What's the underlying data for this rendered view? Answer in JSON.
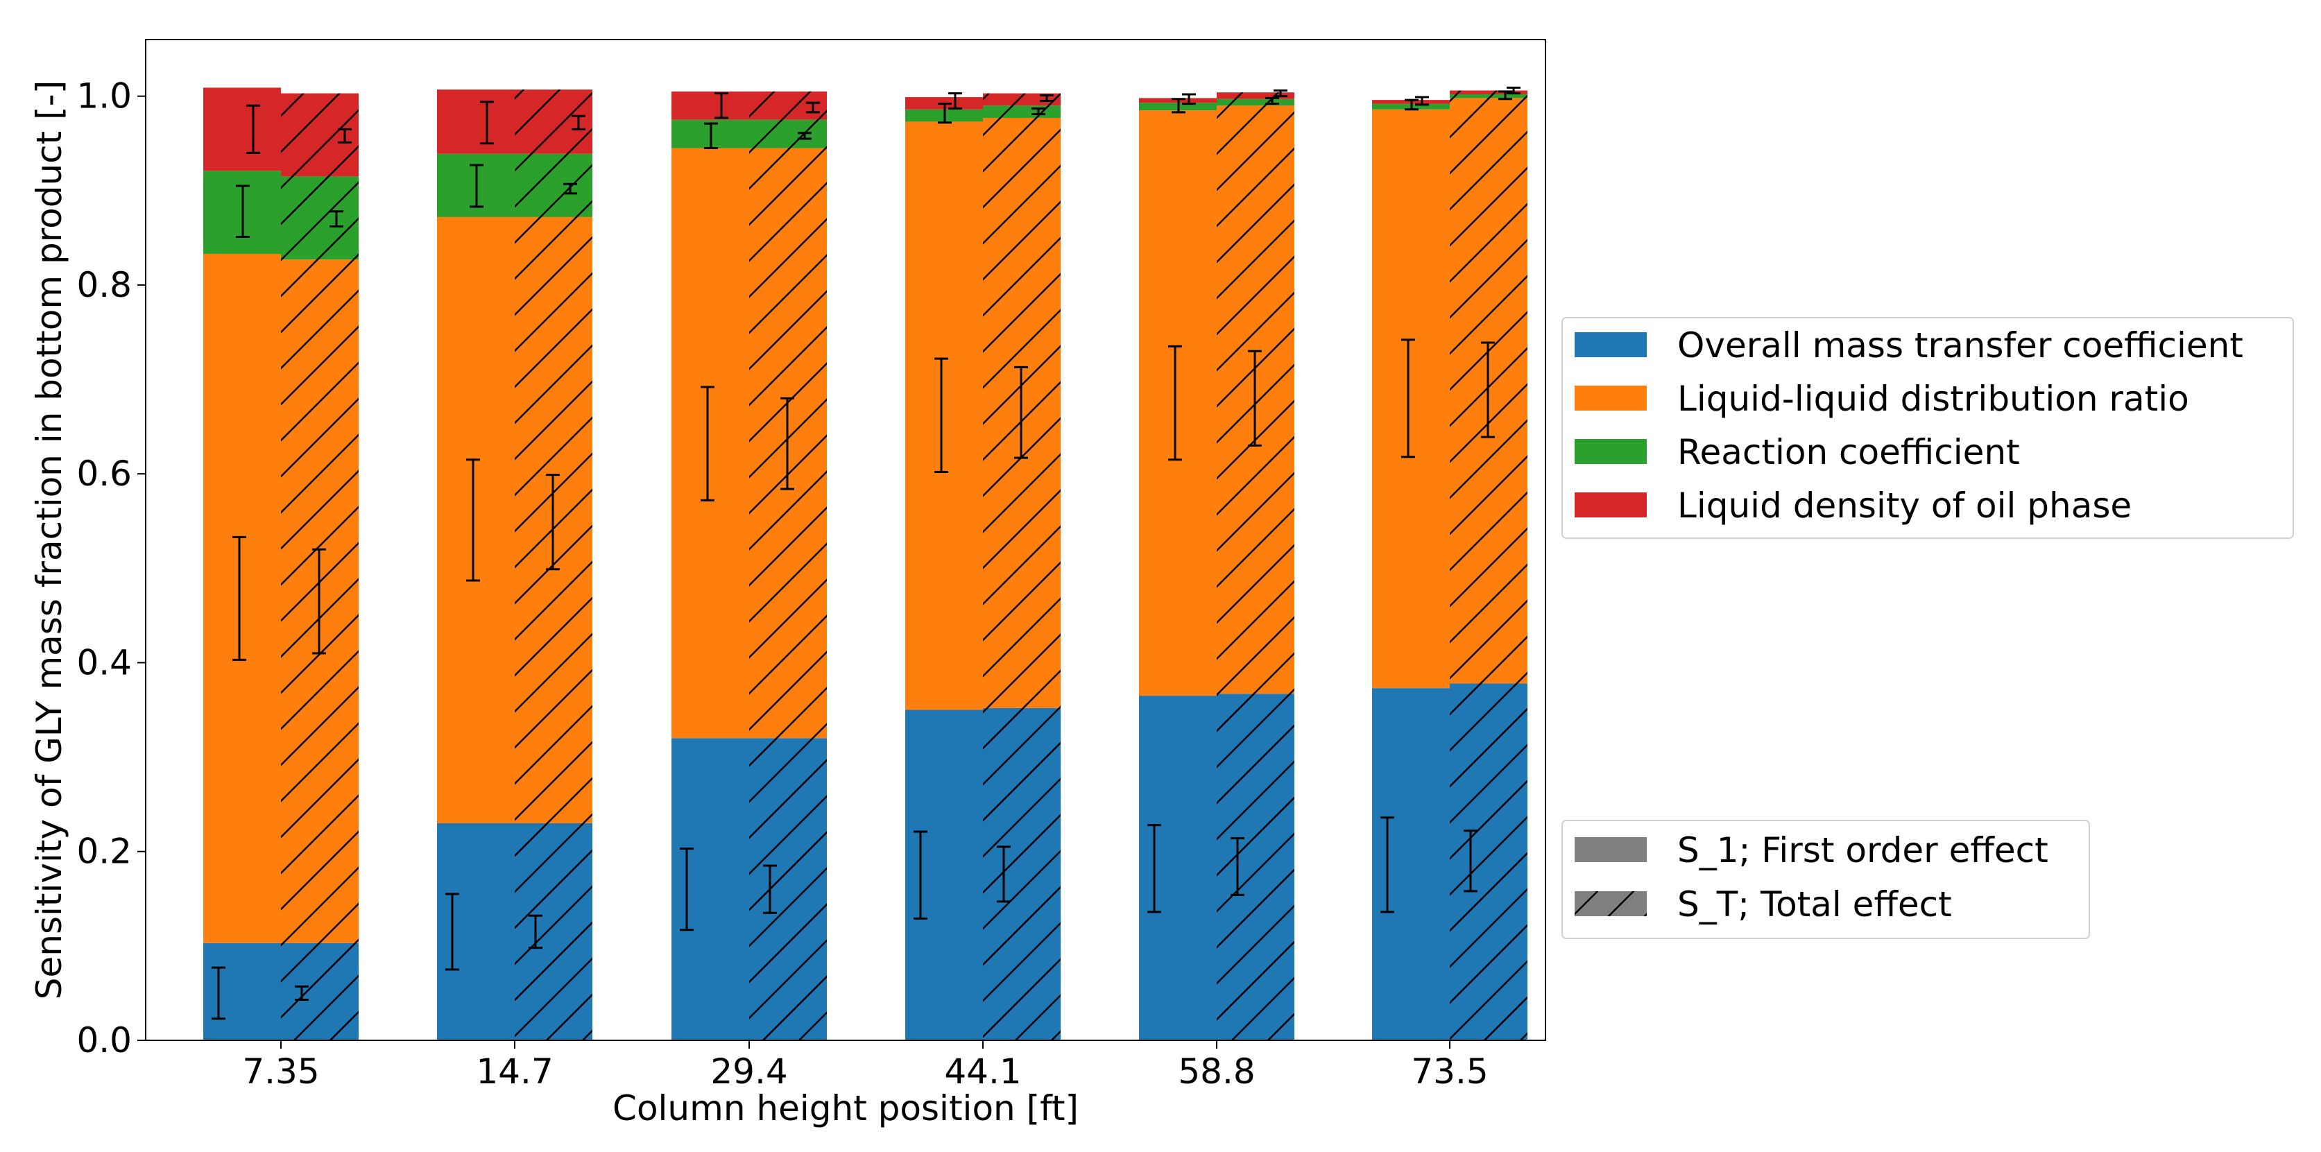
{
  "chart_data": {
    "type": "bar",
    "subtype": "stacked-grouped",
    "title": "",
    "xlabel": "Column height position [ft]",
    "ylabel": "Sensitivity of GLY mass fraction in bottom product [-]",
    "ylim": [
      0.0,
      1.06
    ],
    "yticks": [
      "0.0",
      "0.2",
      "0.4",
      "0.6",
      "0.8",
      "1.0"
    ],
    "categories": [
      "7.35",
      "14.7",
      "29.4",
      "44.1",
      "58.8",
      "73.5"
    ],
    "grid": false,
    "legend_position": "right",
    "series": [
      {
        "name": "Overall mass transfer coefficient",
        "color": "#1f77b4",
        "S1": [
          0.103,
          0.23,
          0.32,
          0.35,
          0.365,
          0.373
        ],
        "ST": [
          0.103,
          0.23,
          0.32,
          0.352,
          0.367,
          0.378
        ],
        "S1_err_center": [
          0.05,
          0.115,
          0.16,
          0.175,
          0.182,
          0.186
        ],
        "S1_err_half": [
          0.027,
          0.04,
          0.043,
          0.046,
          0.046,
          0.05
        ],
        "ST_err_center": [
          0.05,
          0.115,
          0.16,
          0.176,
          0.184,
          0.19
        ],
        "ST_err_half": [
          0.007,
          0.017,
          0.025,
          0.029,
          0.03,
          0.032
        ]
      },
      {
        "name": "Liquid-liquid distribution ratio",
        "color": "#ff7f0e",
        "S1": [
          0.73,
          0.642,
          0.625,
          0.623,
          0.62,
          0.613
        ],
        "ST": [
          0.724,
          0.642,
          0.625,
          0.625,
          0.623,
          0.62
        ],
        "S1_err_center": [
          0.468,
          0.551,
          0.632,
          0.662,
          0.675,
          0.68
        ],
        "S1_err_half": [
          0.065,
          0.064,
          0.06,
          0.06,
          0.06,
          0.062
        ],
        "ST_err_center": [
          0.465,
          0.549,
          0.632,
          0.665,
          0.68,
          0.689
        ],
        "ST_err_half": [
          0.055,
          0.05,
          0.048,
          0.048,
          0.05,
          0.05
        ]
      },
      {
        "name": "Reaction coefficient",
        "color": "#2ca02c",
        "S1": [
          0.088,
          0.067,
          0.03,
          0.013,
          0.008,
          0.006
        ],
        "ST": [
          0.088,
          0.067,
          0.03,
          0.013,
          0.007,
          0.004
        ],
        "S1_err_center": [
          0.878,
          0.905,
          0.958,
          0.982,
          0.99,
          0.991
        ],
        "S1_err_half": [
          0.027,
          0.022,
          0.013,
          0.01,
          0.007,
          0.005
        ],
        "ST_err_center": [
          0.87,
          0.902,
          0.958,
          0.984,
          0.995,
          1.001
        ],
        "ST_err_half": [
          0.008,
          0.005,
          0.003,
          0.003,
          0.003,
          0.004
        ]
      },
      {
        "name": "Liquid density of oil phase",
        "color": "#d62728",
        "S1": [
          0.088,
          0.068,
          0.03,
          0.013,
          0.005,
          0.004
        ],
        "ST": [
          0.088,
          0.068,
          0.03,
          0.013,
          0.007,
          0.004
        ],
        "S1_err_center": [
          0.965,
          0.972,
          0.99,
          0.995,
          0.997,
          0.995
        ],
        "S1_err_half": [
          0.025,
          0.022,
          0.013,
          0.008,
          0.005,
          0.004
        ],
        "ST_err_center": [
          0.958,
          0.972,
          0.988,
          0.998,
          1.003,
          1.006
        ],
        "ST_err_half": [
          0.007,
          0.007,
          0.005,
          0.003,
          0.003,
          0.003
        ]
      }
    ],
    "style_legend": [
      {
        "name": "S_1; First order effect",
        "color": "#808080",
        "hatch": false
      },
      {
        "name": "S_T; Total effect",
        "color": "#808080",
        "hatch": true
      }
    ]
  }
}
